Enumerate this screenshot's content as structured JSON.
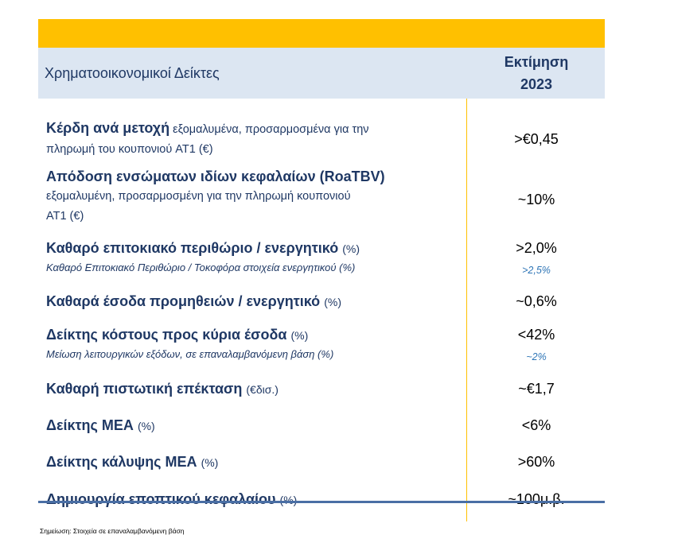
{
  "header": {
    "left": "Χρηματοοικονομικοί Δείκτες",
    "right_line1": "Εκτίμηση",
    "right_line2": "2023"
  },
  "rows": [
    {
      "label": "Κέρδη ανά μετοχή",
      "desc1": "εξομαλυμένα, προσαρμοσμένα για την",
      "desc2": "πληρωμή του κουπονιού AT1 (€)",
      "value": ">€0,45"
    },
    {
      "label": "Απόδοση ενσώματων ιδίων κεφαλαίων (RoaTBV)",
      "desc1": "εξομαλυμένη, προσαρμοσμένη για την πληρωμή κουπονιού",
      "desc2": "AT1 (€)",
      "value": "~10%"
    },
    {
      "label": "Καθαρό επιτοκιακό περιθώριο / ενεργητικό",
      "qual": "(%)",
      "sub": "Καθαρό Επιτοκιακό Περιθώριο / Τοκοφόρα στοιχεία ενεργητικού (%)",
      "value": ">2,0%",
      "sub_value": ">2,5%"
    },
    {
      "label": "Καθαρά έσοδα προμηθειών / ενεργητικό",
      "qual": "(%)",
      "value": "~0,6%"
    },
    {
      "label": "Δείκτης κόστους προς κύρια έσοδα",
      "qual": "(%)",
      "sub": "Μείωση λειτουργικών εξόδων, σε επαναλαμβανόμενη βάση (%)",
      "value": "<42%",
      "sub_value": "~2%"
    },
    {
      "label": "Καθαρή πιστωτική επέκταση",
      "qual": "(€δισ.)",
      "value": "~€1,7"
    },
    {
      "label": "Δείκτης ΜΕΑ",
      "qual": "(%)",
      "value": "<6%"
    },
    {
      "label": "Δείκτης κάλυψης ΜΕΑ",
      "qual": "(%)",
      "value": ">60%"
    },
    {
      "label": "Δημιουργία εποπτικού κεφαλαίου",
      "qual": "(%)",
      "value": "~100μ.β."
    }
  ],
  "note": "Σημείωση: Στοιχεία σε επαναλαμβανόμενη βάση",
  "colors": {
    "accent": "#FFC000",
    "header_bg": "#DCE6F2",
    "text": "#1F3864",
    "sub_value": "#2E75B6",
    "rule": "#4A6FA5"
  }
}
